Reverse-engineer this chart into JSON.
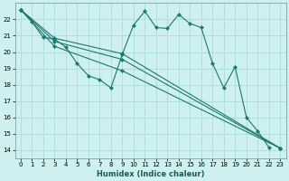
{
  "xlabel": "Humidex (Indice chaleur)",
  "bg_color": "#cff0f0",
  "grid_color": "#aadada",
  "line_color": "#1a7a6e",
  "xlim": [
    -0.5,
    23.5
  ],
  "ylim": [
    13.5,
    23.0
  ],
  "yticks": [
    14,
    15,
    16,
    17,
    18,
    19,
    20,
    21,
    22
  ],
  "xticks": [
    0,
    1,
    2,
    3,
    4,
    5,
    6,
    7,
    8,
    9,
    10,
    11,
    12,
    13,
    14,
    15,
    16,
    17,
    18,
    19,
    20,
    21,
    22,
    23
  ],
  "curve_main": {
    "x": [
      0,
      1,
      2,
      3,
      4,
      5,
      6,
      7,
      8,
      9,
      10,
      11,
      12,
      13,
      14,
      15,
      16,
      17,
      18,
      19,
      20,
      21,
      22
    ],
    "y": [
      22.6,
      21.85,
      20.9,
      20.8,
      20.3,
      19.3,
      18.55,
      18.3,
      17.8,
      19.85,
      21.65,
      22.5,
      21.5,
      21.45,
      22.3,
      21.75,
      21.5,
      19.3,
      17.8,
      19.1,
      16.0,
      15.15,
      14.15
    ]
  },
  "line1": {
    "x": [
      0,
      3,
      9,
      23
    ],
    "y": [
      22.6,
      20.85,
      19.9,
      14.1
    ]
  },
  "line2": {
    "x": [
      0,
      3,
      9,
      23
    ],
    "y": [
      22.6,
      20.65,
      19.55,
      14.1
    ]
  },
  "line3": {
    "x": [
      0,
      3,
      9,
      23
    ],
    "y": [
      22.6,
      20.35,
      18.85,
      14.1
    ]
  }
}
